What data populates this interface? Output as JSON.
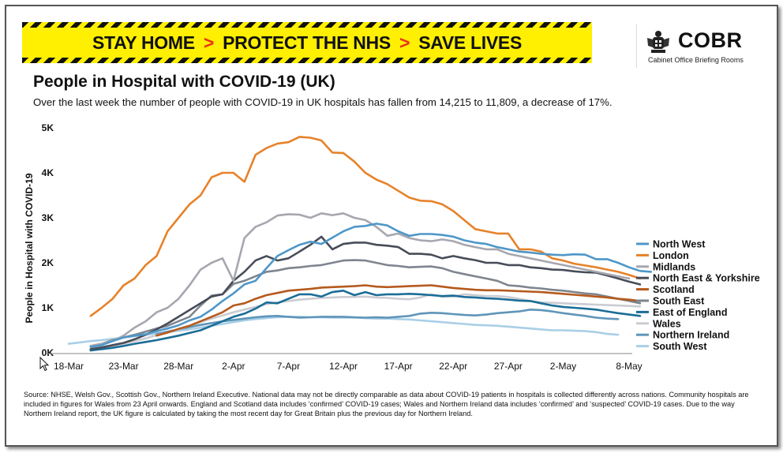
{
  "banner": {
    "part1": "STAY HOME",
    "part2": "PROTECT THE NHS",
    "part3": "SAVE LIVES",
    "separator": ">"
  },
  "logo": {
    "name": "COBR",
    "subtitle": "Cabinet Office Briefing Rooms",
    "icon": "royal-crest-icon"
  },
  "header": {
    "title": "People in Hospital with COVID-19 (UK)",
    "subtitle": "Over the last week the number of people with COVID-19 in UK hospitals has fallen from 14,215 to 11,809, a decrease of 17%."
  },
  "footer": {
    "source": "Source: NHSE, Welsh Gov., Scottish Gov., Northern Ireland Executive. National data may not be directly comparable as data about COVID-19 patients in hospitals is collected differently across nations. Community hospitals are included in figures for Wales from 23 April onwards. England and Scotland data includes ‘confirmed’ COVID-19 cases; Wales and Northern Ireland data includes ‘confirmed’ and ‘suspected’ COVID-19 cases. Due to the way Northern Ireland report, the UK figure is calculated by taking the most recent day for Great Britain plus the previous day for Northern Ireland."
  },
  "chart_data": {
    "type": "line",
    "title": "People in Hospital with COVID-19 (UK)",
    "ylabel": "People in Hospital with COVID-19",
    "xlabel": "",
    "ylim": [
      0,
      5000
    ],
    "yticks": [
      0,
      1000,
      2000,
      3000,
      4000,
      5000
    ],
    "ytick_labels": [
      "0K",
      "1K",
      "2K",
      "3K",
      "4K",
      "5K"
    ],
    "xlim_day": [
      0,
      51
    ],
    "xticks": [
      0,
      5,
      10,
      15,
      20,
      25,
      30,
      35,
      40,
      45,
      51
    ],
    "xtick_labels": [
      "18-Mar",
      "23-Mar",
      "28-Mar",
      "2-Apr",
      "7-Apr",
      "12-Apr",
      "17-Apr",
      "22-Apr",
      "27-Apr",
      "2-May",
      "8-May"
    ],
    "x_start_date": "2020-03-18",
    "grid": false,
    "legend_position": "right",
    "series": [
      {
        "name": "North West",
        "color": "#4e97c8",
        "start_day": 2,
        "values": [
          130,
          170,
          260,
          340,
          380,
          410,
          480,
          540,
          610,
          720,
          800,
          960,
          1150,
          1320,
          1520,
          1600,
          1880,
          2150,
          2280,
          2400,
          2470,
          2420,
          2560,
          2700,
          2800,
          2820,
          2870,
          2830,
          2700,
          2600,
          2640,
          2640,
          2620,
          2580,
          2500,
          2450,
          2420,
          2350,
          2300,
          2250,
          2230,
          2200,
          2180,
          2170,
          2190,
          2180,
          2080,
          2080,
          2000,
          1900,
          1820,
          1800
        ]
      },
      {
        "name": "London",
        "color": "#e7822a",
        "start_day": 2,
        "values": [
          820,
          1000,
          1200,
          1500,
          1650,
          1950,
          2150,
          2700,
          3000,
          3300,
          3500,
          3900,
          4000,
          4000,
          3800,
          4400,
          4550,
          4650,
          4680,
          4800,
          4780,
          4720,
          4450,
          4440,
          4250,
          4000,
          3850,
          3750,
          3600,
          3450,
          3380,
          3370,
          3300,
          3150,
          2950,
          2750,
          2700,
          2650,
          2650,
          2300,
          2300,
          2250,
          2100,
          2050,
          1980,
          1940,
          1900,
          1850,
          1800,
          1730,
          1650
        ]
      },
      {
        "name": "Midlands",
        "color": "#a6a7af",
        "start_day": 2,
        "values": [
          150,
          200,
          260,
          380,
          560,
          700,
          900,
          1000,
          1200,
          1500,
          1850,
          2000,
          2100,
          1600,
          2550,
          2800,
          2900,
          3050,
          3080,
          3070,
          3000,
          3100,
          3060,
          3100,
          3000,
          2950,
          2800,
          2600,
          2650,
          2550,
          2500,
          2480,
          2520,
          2480,
          2400,
          2350,
          2300,
          2300,
          2200,
          2150,
          2100,
          2050,
          2000,
          1950,
          1900,
          1850,
          1800,
          1750,
          1700,
          1650
        ]
      },
      {
        "name": "North East & Yorkshire",
        "color": "#474d58",
        "start_day": 2,
        "values": [
          80,
          120,
          170,
          220,
          300,
          400,
          520,
          650,
          800,
          950,
          1100,
          1250,
          1300,
          1600,
          1800,
          2050,
          2150,
          2050,
          2100,
          2250,
          2400,
          2580,
          2300,
          2420,
          2450,
          2450,
          2400,
          2380,
          2350,
          2200,
          2200,
          2180,
          2100,
          2150,
          2100,
          2060,
          2000,
          2000,
          1950,
          1950,
          1900,
          1880,
          1850,
          1840,
          1810,
          1790,
          1780,
          1720,
          1650,
          1580,
          1520
        ]
      },
      {
        "name": "Scotland",
        "color": "#b55a1e",
        "start_day": 8,
        "values": [
          380,
          450,
          530,
          600,
          700,
          800,
          900,
          1050,
          1100,
          1200,
          1280,
          1330,
          1380,
          1400,
          1420,
          1450,
          1460,
          1470,
          1480,
          1500,
          1470,
          1460,
          1470,
          1480,
          1490,
          1500,
          1470,
          1440,
          1420,
          1400,
          1390,
          1390,
          1380,
          1370,
          1360,
          1350,
          1330,
          1310,
          1290,
          1270,
          1250,
          1230,
          1200,
          1180,
          1150
        ]
      },
      {
        "name": "South East",
        "color": "#7e858f",
        "start_day": 2,
        "values": [
          150,
          200,
          280,
          340,
          400,
          470,
          540,
          600,
          700,
          800,
          1050,
          1270,
          1300,
          1530,
          1600,
          1700,
          1800,
          1830,
          1880,
          1900,
          1930,
          1950,
          2000,
          2050,
          2060,
          2050,
          2000,
          1950,
          1930,
          1900,
          1910,
          1920,
          1880,
          1800,
          1750,
          1700,
          1650,
          1600,
          1500,
          1480,
          1450,
          1430,
          1400,
          1380,
          1350,
          1320,
          1300,
          1250,
          1200,
          1150,
          1100
        ]
      },
      {
        "name": "East of England",
        "color": "#1b6d97",
        "start_day": 2,
        "values": [
          50,
          80,
          110,
          150,
          200,
          240,
          280,
          330,
          380,
          440,
          500,
          600,
          700,
          800,
          870,
          980,
          1120,
          1100,
          1200,
          1300,
          1300,
          1250,
          1350,
          1380,
          1280,
          1350,
          1280,
          1300,
          1300,
          1310,
          1300,
          1280,
          1260,
          1270,
          1240,
          1230,
          1210,
          1200,
          1180,
          1160,
          1150,
          1100,
          1050,
          1020,
          1000,
          980,
          960,
          920,
          880,
          850,
          820
        ]
      },
      {
        "name": "Wales",
        "color": "#cbccd2",
        "start_day": 2,
        "values": [
          80,
          110,
          150,
          200,
          260,
          320,
          390,
          450,
          520,
          600,
          680,
          760,
          830,
          900,
          960,
          1020,
          1080,
          1120,
          1150,
          1180,
          1200,
          1220,
          1230,
          1240,
          1240,
          1250,
          1230,
          1220,
          1200,
          1190,
          1230,
          1300,
          1250,
          1250,
          1300,
          1280,
          1260,
          1260,
          1240,
          1200,
          1150,
          1120,
          1110,
          1100,
          1090,
          1080,
          1070,
          1060,
          1050,
          1040,
          1030
        ]
      },
      {
        "name": "Northern Ireland",
        "color": "#5f95b9",
        "start_day": 8,
        "values": [
          420,
          470,
          520,
          570,
          620,
          660,
          700,
          730,
          760,
          790,
          810,
          820,
          800,
          780,
          790,
          800,
          800,
          800,
          790,
          780,
          790,
          780,
          800,
          820,
          870,
          890,
          880,
          860,
          840,
          830,
          850,
          880,
          900,
          920,
          960,
          950,
          920,
          880,
          850,
          820,
          780,
          760,
          750
        ]
      },
      {
        "name": "South West",
        "color": "#a9cfe6",
        "start_day": 0,
        "values": [
          200,
          230,
          260,
          280,
          310,
          340,
          370,
          400,
          430,
          460,
          490,
          520,
          560,
          600,
          640,
          680,
          720,
          750,
          770,
          790,
          800,
          800,
          790,
          790,
          780,
          780,
          780,
          770,
          760,
          760,
          750,
          740,
          720,
          700,
          680,
          660,
          640,
          620,
          610,
          600,
          580,
          560,
          540,
          520,
          500,
          500,
          490,
          480,
          460,
          420,
          400
        ]
      }
    ]
  }
}
